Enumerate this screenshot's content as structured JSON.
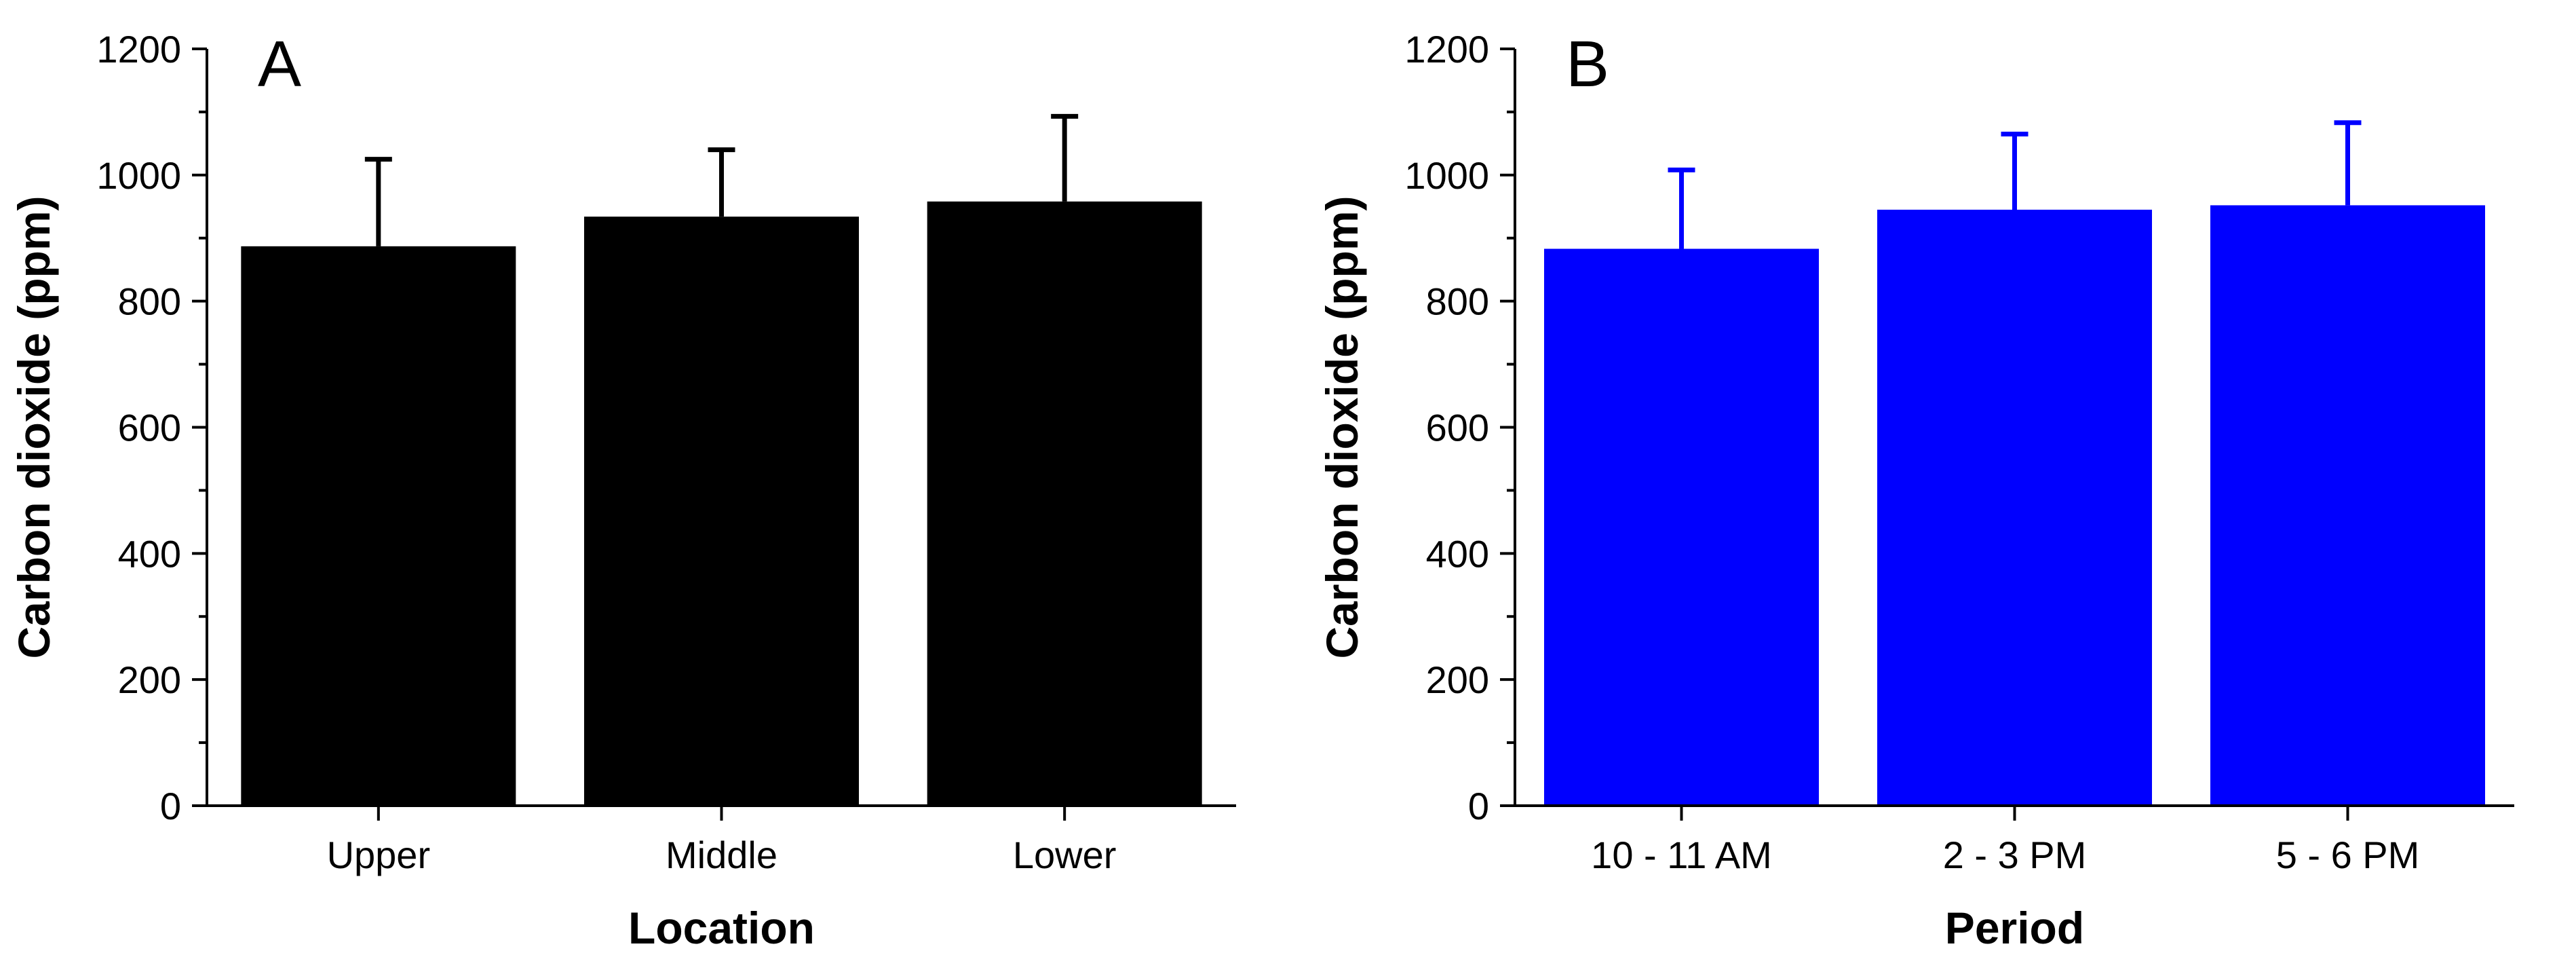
{
  "chart_data": [
    {
      "type": "bar",
      "panel_label": "A",
      "categories": [
        "Upper",
        "Middle",
        "Lower"
      ],
      "values": [
        887,
        934,
        958
      ],
      "error_upper": [
        1025,
        1040,
        1093
      ],
      "xlabel": "Location",
      "ylabel": "Carbon dioxide (ppm)",
      "ylim": [
        0,
        1200
      ],
      "yticks": [
        "0",
        "200",
        "400",
        "600",
        "800",
        "1000",
        "1200"
      ],
      "color": "#000000"
    },
    {
      "type": "bar",
      "panel_label": "B",
      "categories": [
        "10 - 11 AM",
        "2 - 3 PM",
        "5 - 6 PM"
      ],
      "values": [
        883,
        945,
        952
      ],
      "error_upper": [
        1008,
        1065,
        1083
      ],
      "xlabel": "Period",
      "ylabel": "Carbon dioxide (ppm)",
      "ylim": [
        0,
        1200
      ],
      "yticks": [
        "0",
        "200",
        "400",
        "600",
        "800",
        "1000",
        "1200"
      ],
      "color": "#0000ff"
    }
  ]
}
